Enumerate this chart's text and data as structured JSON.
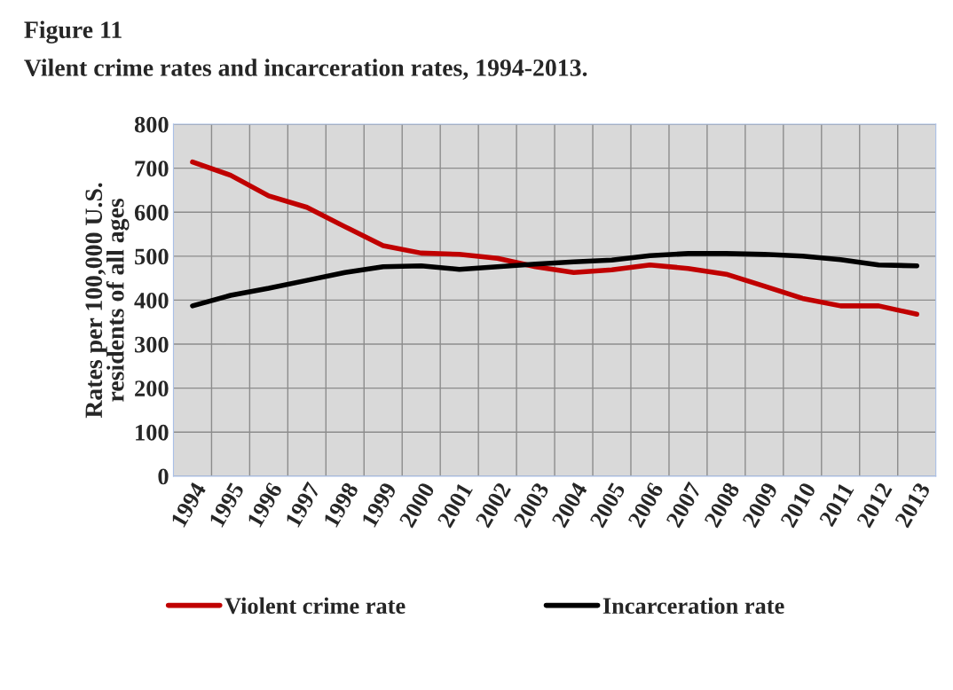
{
  "chart_data": {
    "type": "line",
    "title": "Figure 11",
    "subtitle": "Vilent crime rates and incarceration rates, 1994-2013.",
    "ylabel": "Rates per 100,000 U.S.\nresidents of all ages",
    "categories": [
      "1994",
      "1995",
      "1996",
      "1997",
      "1998",
      "1999",
      "2000",
      "2001",
      "2002",
      "2003",
      "2004",
      "2005",
      "2006",
      "2007",
      "2008",
      "2009",
      "2010",
      "2011",
      "2012",
      "2013"
    ],
    "series": [
      {
        "name": "Violent crime rate",
        "color": "#c00000",
        "values": [
          714,
          684,
          637,
          611,
          567,
          524,
          507,
          504,
          495,
          476,
          463,
          469,
          480,
          472,
          459,
          432,
          404,
          387,
          387,
          368
        ]
      },
      {
        "name": "Incarceration rate",
        "color": "#000000",
        "values": [
          387,
          411,
          427,
          445,
          463,
          476,
          478,
          470,
          476,
          482,
          487,
          491,
          501,
          506,
          506,
          504,
          500,
          492,
          480,
          478
        ]
      }
    ],
    "ylim": [
      0,
      800
    ],
    "yticks": [
      0,
      100,
      200,
      300,
      400,
      500,
      600,
      700,
      800
    ],
    "grid": true,
    "legend": "bottom",
    "marker": "none",
    "line_style": "solid"
  }
}
